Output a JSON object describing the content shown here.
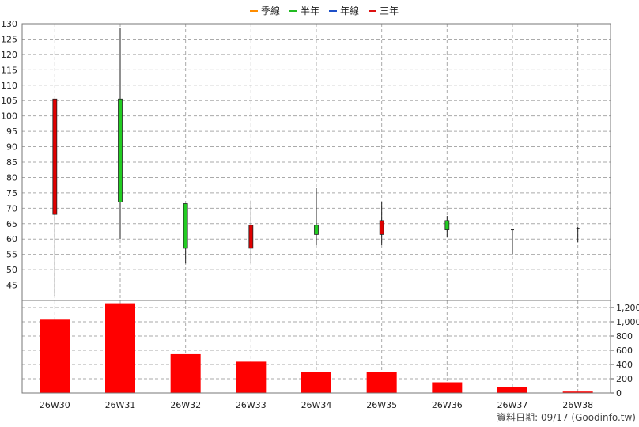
{
  "chart_data": {
    "type": "candlestick_with_volume",
    "legend": [
      {
        "name": "季線",
        "color": "#ff8c00"
      },
      {
        "name": "半年",
        "color": "#22bb22"
      },
      {
        "name": "年線",
        "color": "#1e50c8"
      },
      {
        "name": "三年",
        "color": "#dd1111"
      }
    ],
    "categories": [
      "26W30",
      "26W31",
      "26W32",
      "26W33",
      "26W34",
      "26W35",
      "26W36",
      "26W37",
      "26W38"
    ],
    "price_axis": {
      "min": 40,
      "max": 130,
      "ticks": [
        45,
        50,
        55,
        60,
        65,
        70,
        75,
        80,
        85,
        90,
        95,
        100,
        105,
        110,
        115,
        120,
        125,
        130
      ]
    },
    "volume_axis": {
      "min": 0,
      "max": 1300,
      "ticks": [
        0,
        200,
        400,
        600,
        800,
        1000,
        1200
      ],
      "tick_labels": [
        "0",
        "200",
        "400",
        "600",
        "800",
        "1,000",
        "1,200"
      ]
    },
    "candles": [
      {
        "open": 68,
        "close": 105.5,
        "high": 105.5,
        "low": 41.5,
        "color": "#e00000"
      },
      {
        "open": 105.5,
        "close": 72,
        "high": 128.5,
        "low": 60,
        "color": "#22cc22"
      },
      {
        "open": 71.5,
        "close": 57,
        "high": 71.5,
        "low": 52,
        "color": "#22cc22"
      },
      {
        "open": 57,
        "close": 64.5,
        "high": 72.5,
        "low": 52,
        "color": "#e00000"
      },
      {
        "open": 64.5,
        "close": 61.5,
        "high": 76.5,
        "low": 58,
        "color": "#22cc22"
      },
      {
        "open": 61.5,
        "close": 66,
        "high": 72,
        "low": 58,
        "color": "#e00000"
      },
      {
        "open": 66,
        "close": 63,
        "high": 67.5,
        "low": 60.5,
        "color": "#22cc22"
      },
      {
        "open": 63,
        "close": 63,
        "high": 63,
        "low": 55,
        "color": "#222222"
      },
      {
        "open": 63.5,
        "close": 63.5,
        "high": 64,
        "low": 59,
        "color": "#222222"
      }
    ],
    "volume": [
      1030,
      1260,
      545,
      440,
      300,
      300,
      150,
      80,
      20
    ],
    "grid": true
  },
  "footer": {
    "text": "資料日期: 09/17  (Goodinfo.tw)"
  }
}
